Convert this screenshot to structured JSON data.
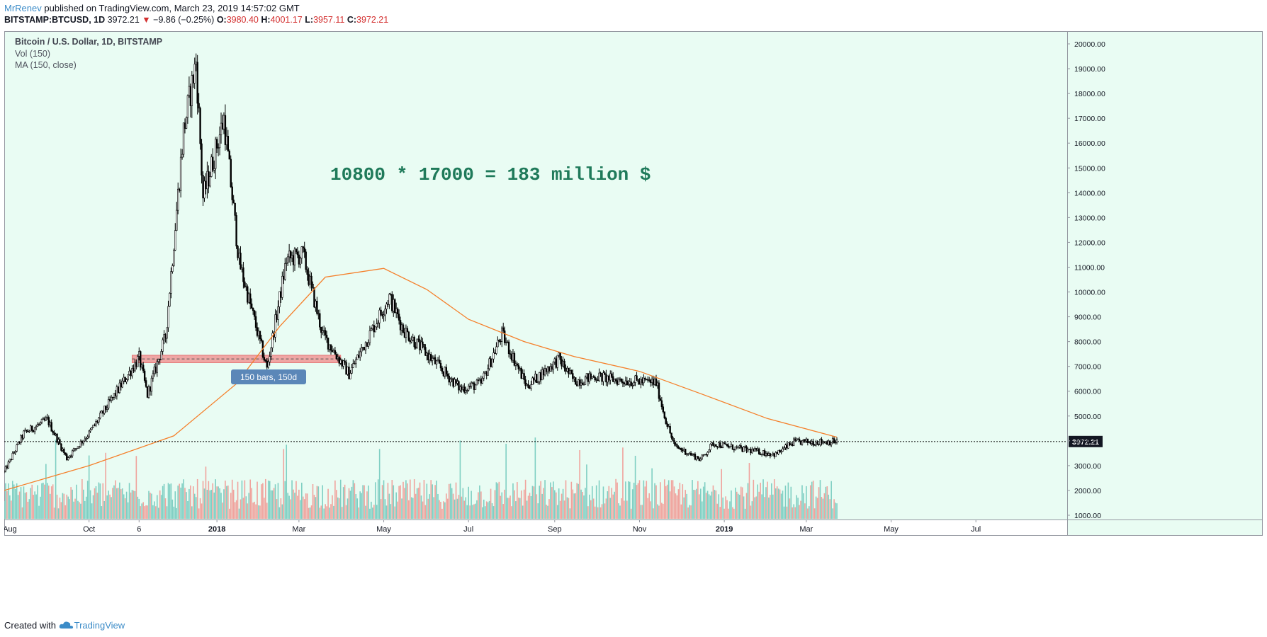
{
  "header": {
    "author": "MrRenev",
    "published": "published on TradingView.com, March 23, 2019 14:57:02 GMT",
    "symbol": "BITSTAMP:BTCUSD, 1D",
    "price": "3972.21",
    "change": "−9.86 (−0.25%)",
    "open_label": "O:",
    "open": "3980.40",
    "high_label": "H:",
    "high": "4001.17",
    "low_label": "L:",
    "low": "3957.11",
    "close_label": "C:",
    "close": "3972.21"
  },
  "legend": {
    "title": "Bitcoin / U.S. Dollar, 1D, BITSTAMP",
    "vol": "Vol (150)",
    "ma": "MA (150, close)"
  },
  "annotation": {
    "text": "10800 * 17000 = 183 million $",
    "range_label": "150 bars, 150d"
  },
  "footer": {
    "created": "Created with",
    "brand": "TradingView"
  },
  "colors": {
    "background": "#e9fcf3",
    "candle": "#000000",
    "ma": "#f57f2a",
    "vol_up": "#7fcfc3",
    "vol_down": "#f0a39d",
    "annotation_text": "#1f7a5a",
    "range_box": "#f08a8a",
    "range_label_bg": "#5b87b8",
    "axis_text": "#131722"
  },
  "chart_data": {
    "type": "candlestick",
    "title": "Bitcoin / U.S. Dollar, 1D, BITSTAMP",
    "ylim": [
      1000,
      20000
    ],
    "y_ticks": [
      "1000.00",
      "2000.00",
      "3000.00",
      "4000.00",
      "5000.00",
      "6000.00",
      "7000.00",
      "8000.00",
      "9000.00",
      "10000.00",
      "11000.00",
      "12000.00",
      "13000.00",
      "14000.00",
      "15000.00",
      "16000.00",
      "17000.00",
      "18000.00",
      "19000.00",
      "20000.00"
    ],
    "x_ticks": [
      "Aug",
      "Oct",
      "6",
      "2018",
      "Mar",
      "May",
      "Jul",
      "Sep",
      "Nov",
      "2019",
      "Mar",
      "May",
      "Jul"
    ],
    "last_price_label": "3972.21",
    "last_price": 3972.21,
    "price_path": [
      {
        "date": "2017-08-01",
        "close": 2750
      },
      {
        "date": "2017-08-15",
        "close": 4300
      },
      {
        "date": "2017-09-01",
        "close": 4850
      },
      {
        "date": "2017-09-15",
        "close": 3300
      },
      {
        "date": "2017-10-01",
        "close": 4300
      },
      {
        "date": "2017-10-20",
        "close": 5900
      },
      {
        "date": "2017-11-06",
        "close": 7350
      },
      {
        "date": "2017-11-12",
        "close": 5850
      },
      {
        "date": "2017-11-25",
        "close": 8200
      },
      {
        "date": "2017-12-08",
        "close": 16500
      },
      {
        "date": "2017-12-17",
        "close": 19300
      },
      {
        "date": "2017-12-22",
        "close": 13800
      },
      {
        "date": "2018-01-06",
        "close": 17000
      },
      {
        "date": "2018-01-17",
        "close": 11200
      },
      {
        "date": "2018-02-06",
        "close": 6900
      },
      {
        "date": "2018-02-20",
        "close": 11300
      },
      {
        "date": "2018-03-04",
        "close": 11500
      },
      {
        "date": "2018-03-18",
        "close": 8300
      },
      {
        "date": "2018-04-06",
        "close": 6700
      },
      {
        "date": "2018-05-05",
        "close": 9800
      },
      {
        "date": "2018-05-15",
        "close": 8500
      },
      {
        "date": "2018-06-01",
        "close": 7500
      },
      {
        "date": "2018-06-25",
        "close": 6100
      },
      {
        "date": "2018-07-10",
        "close": 6300
      },
      {
        "date": "2018-07-25",
        "close": 8300
      },
      {
        "date": "2018-08-12",
        "close": 6200
      },
      {
        "date": "2018-09-04",
        "close": 7300
      },
      {
        "date": "2018-09-15",
        "close": 6400
      },
      {
        "date": "2018-10-01",
        "close": 6600
      },
      {
        "date": "2018-10-15",
        "close": 6450
      },
      {
        "date": "2018-11-13",
        "close": 6350
      },
      {
        "date": "2018-11-19",
        "close": 5000
      },
      {
        "date": "2018-11-26",
        "close": 3800
      },
      {
        "date": "2018-12-15",
        "close": 3250
      },
      {
        "date": "2018-12-24",
        "close": 3900
      },
      {
        "date": "2019-01-10",
        "close": 3700
      },
      {
        "date": "2019-02-07",
        "close": 3450
      },
      {
        "date": "2019-02-20",
        "close": 3950
      },
      {
        "date": "2019-03-23",
        "close": 3972
      }
    ],
    "ma_150": [
      {
        "date": "2017-08-01",
        "value": 2000
      },
      {
        "date": "2017-10-01",
        "value": 3000
      },
      {
        "date": "2017-12-01",
        "value": 4200
      },
      {
        "date": "2018-01-15",
        "value": 6300
      },
      {
        "date": "2018-02-15",
        "value": 8600
      },
      {
        "date": "2018-03-20",
        "value": 10600
      },
      {
        "date": "2018-05-01",
        "value": 10950
      },
      {
        "date": "2018-06-01",
        "value": 10100
      },
      {
        "date": "2018-07-01",
        "value": 8900
      },
      {
        "date": "2018-08-10",
        "value": 8000
      },
      {
        "date": "2018-09-15",
        "value": 7400
      },
      {
        "date": "2018-11-01",
        "value": 6800
      },
      {
        "date": "2018-12-15",
        "value": 5900
      },
      {
        "date": "2019-02-01",
        "value": 4900
      },
      {
        "date": "2019-03-23",
        "value": 4150
      }
    ],
    "range_box": {
      "from": "2017-11-01",
      "to": "2018-03-31",
      "low": 7150,
      "high": 7450
    }
  }
}
